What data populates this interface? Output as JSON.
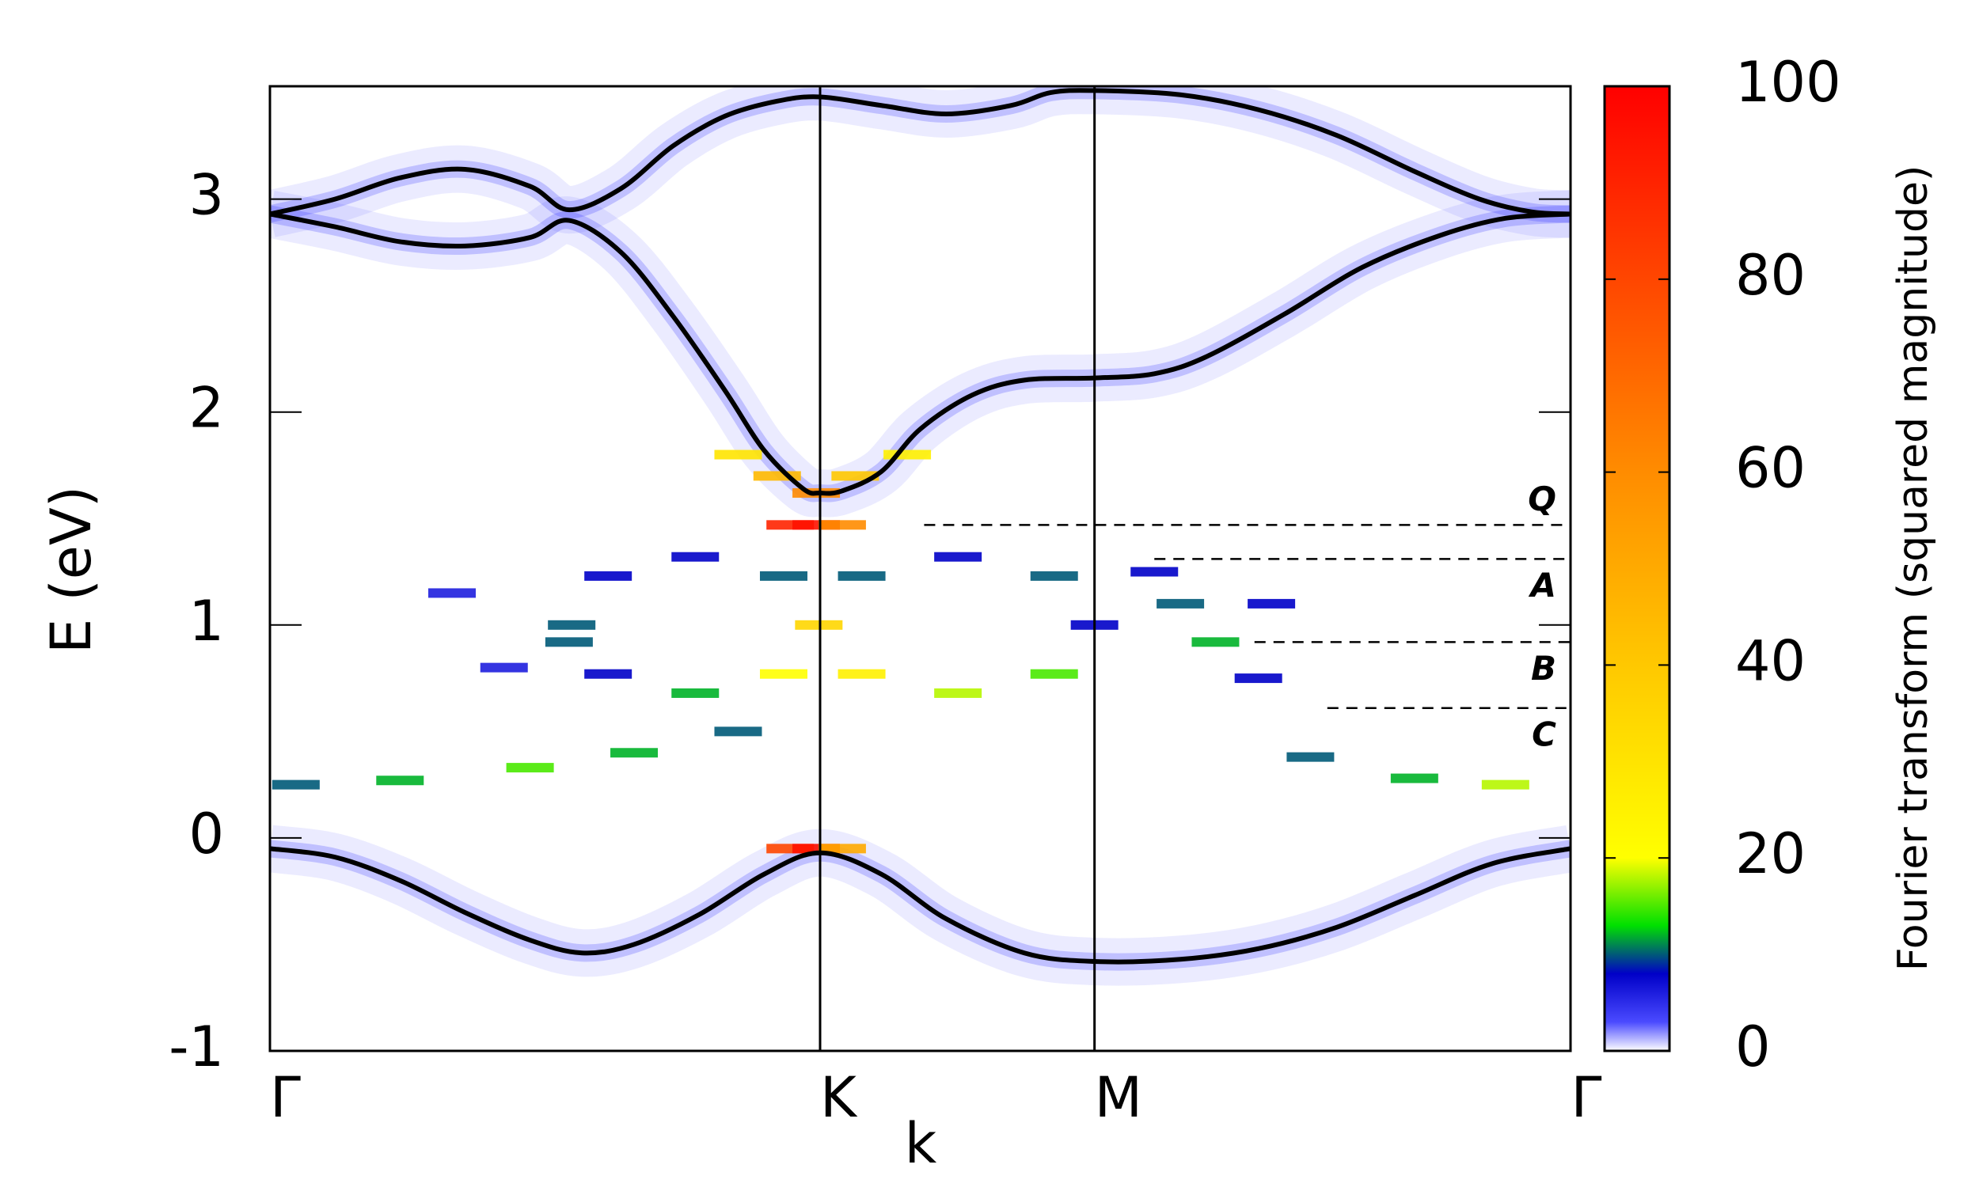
{
  "chart_data": {
    "type": "line",
    "ylabel": "E (eV)",
    "xlabel": "k",
    "xlim": [
      0,
      1
    ],
    "ylim": [
      -1,
      3.53
    ],
    "yticks": [
      -1,
      0,
      1,
      2,
      3
    ],
    "xticks": [
      {
        "value": 0,
        "label": "Γ"
      },
      {
        "value": 0.423,
        "label": "K"
      },
      {
        "value": 0.634,
        "label": "M"
      },
      {
        "value": 1,
        "label": "Γ"
      }
    ],
    "series": [
      {
        "color": "#000000",
        "x": [
          0,
          0.05,
          0.1,
          0.15,
          0.2,
          0.24,
          0.28,
          0.33,
          0.38,
          0.423,
          0.47,
          0.52,
          0.58,
          0.634,
          0.7,
          0.76,
          0.82,
          0.88,
          0.94,
          1.0
        ],
        "values": [
          -0.05,
          -0.09,
          -0.2,
          -0.35,
          -0.48,
          -0.54,
          -0.5,
          -0.36,
          -0.17,
          -0.07,
          -0.17,
          -0.38,
          -0.54,
          -0.58,
          -0.57,
          -0.52,
          -0.42,
          -0.27,
          -0.12,
          -0.05
        ]
      },
      {
        "color": "#000000",
        "x": [
          0,
          0.05,
          0.1,
          0.15,
          0.2,
          0.23,
          0.27,
          0.31,
          0.35,
          0.38,
          0.41,
          0.423,
          0.44,
          0.47,
          0.5,
          0.54,
          0.58,
          0.634,
          0.68,
          0.72,
          0.78,
          0.84,
          0.9,
          0.95,
          1.0
        ],
        "values": [
          2.93,
          2.87,
          2.8,
          2.78,
          2.82,
          2.9,
          2.75,
          2.45,
          2.1,
          1.82,
          1.64,
          1.62,
          1.63,
          1.72,
          1.92,
          2.08,
          2.15,
          2.16,
          2.18,
          2.26,
          2.46,
          2.68,
          2.83,
          2.91,
          2.93
        ]
      },
      {
        "color": "#000000",
        "x": [
          0,
          0.05,
          0.1,
          0.15,
          0.2,
          0.23,
          0.27,
          0.31,
          0.35,
          0.39,
          0.423,
          0.47,
          0.52,
          0.57,
          0.6,
          0.634,
          0.7,
          0.76,
          0.82,
          0.88,
          0.93,
          0.97,
          1.0
        ],
        "values": [
          2.93,
          3.0,
          3.1,
          3.14,
          3.06,
          2.95,
          3.05,
          3.25,
          3.39,
          3.46,
          3.48,
          3.44,
          3.4,
          3.44,
          3.5,
          3.51,
          3.49,
          3.42,
          3.3,
          3.13,
          3.0,
          2.94,
          2.93
        ]
      }
    ],
    "heatmap": {
      "x": [
        0.4,
        0.42,
        0.44,
        0.4,
        0.42,
        0.44,
        0.36,
        0.39,
        0.42,
        0.45,
        0.49,
        0.232,
        0.26,
        0.327,
        0.395,
        0.422,
        0.395,
        0.327,
        0.26,
        0.455,
        0.529,
        0.603,
        0.634,
        0.603,
        0.529,
        0.455,
        0.68,
        0.7,
        0.727,
        0.76,
        0.77,
        0.14,
        0.23,
        0.18,
        0.02,
        0.1,
        0.2,
        0.28,
        0.36,
        0.8,
        0.88,
        0.95
      ],
      "y": [
        1.47,
        1.47,
        1.47,
        -0.05,
        -0.05,
        -0.05,
        1.8,
        1.7,
        1.62,
        1.7,
        1.8,
        1.0,
        1.23,
        1.32,
        1.23,
        1.0,
        0.77,
        0.68,
        0.77,
        1.23,
        1.32,
        1.23,
        1.0,
        0.77,
        0.68,
        0.77,
        1.25,
        1.1,
        0.92,
        0.75,
        1.1,
        1.15,
        0.92,
        0.8,
        0.25,
        0.27,
        0.33,
        0.4,
        0.5,
        0.38,
        0.28,
        0.25
      ],
      "values": [
        90,
        95,
        60,
        80,
        95,
        50,
        30,
        45,
        60,
        40,
        25,
        10,
        8,
        8,
        10,
        35,
        20,
        12,
        8,
        10,
        8,
        10,
        8,
        15,
        18,
        25,
        8,
        10,
        12,
        8,
        8,
        6,
        10,
        6,
        10,
        12,
        15,
        12,
        10,
        10,
        12,
        18
      ]
    },
    "colorbar": {
      "label": "Fourier transform (squared magnitude)",
      "lim": [
        0,
        100
      ],
      "ticks": [
        0,
        20,
        40,
        60,
        80,
        100
      ]
    },
    "colorscale": [
      [
        0,
        "#ffffff"
      ],
      [
        3,
        "#4a4aff"
      ],
      [
        8,
        "#0000c8"
      ],
      [
        13,
        "#00e000"
      ],
      [
        20,
        "#ffff00"
      ],
      [
        40,
        "#ffc800"
      ],
      [
        60,
        "#ff8c00"
      ],
      [
        100,
        "#ff0000"
      ]
    ],
    "annotations": [
      {
        "text": "Q",
        "y": 1.47,
        "x": 0.503
      },
      {
        "text": "A",
        "y": 1.31,
        "x": 0.68
      },
      {
        "text": "B",
        "y": 0.92,
        "x": 0.757
      },
      {
        "text": "C",
        "y": 0.61,
        "x": 0.813
      }
    ]
  }
}
